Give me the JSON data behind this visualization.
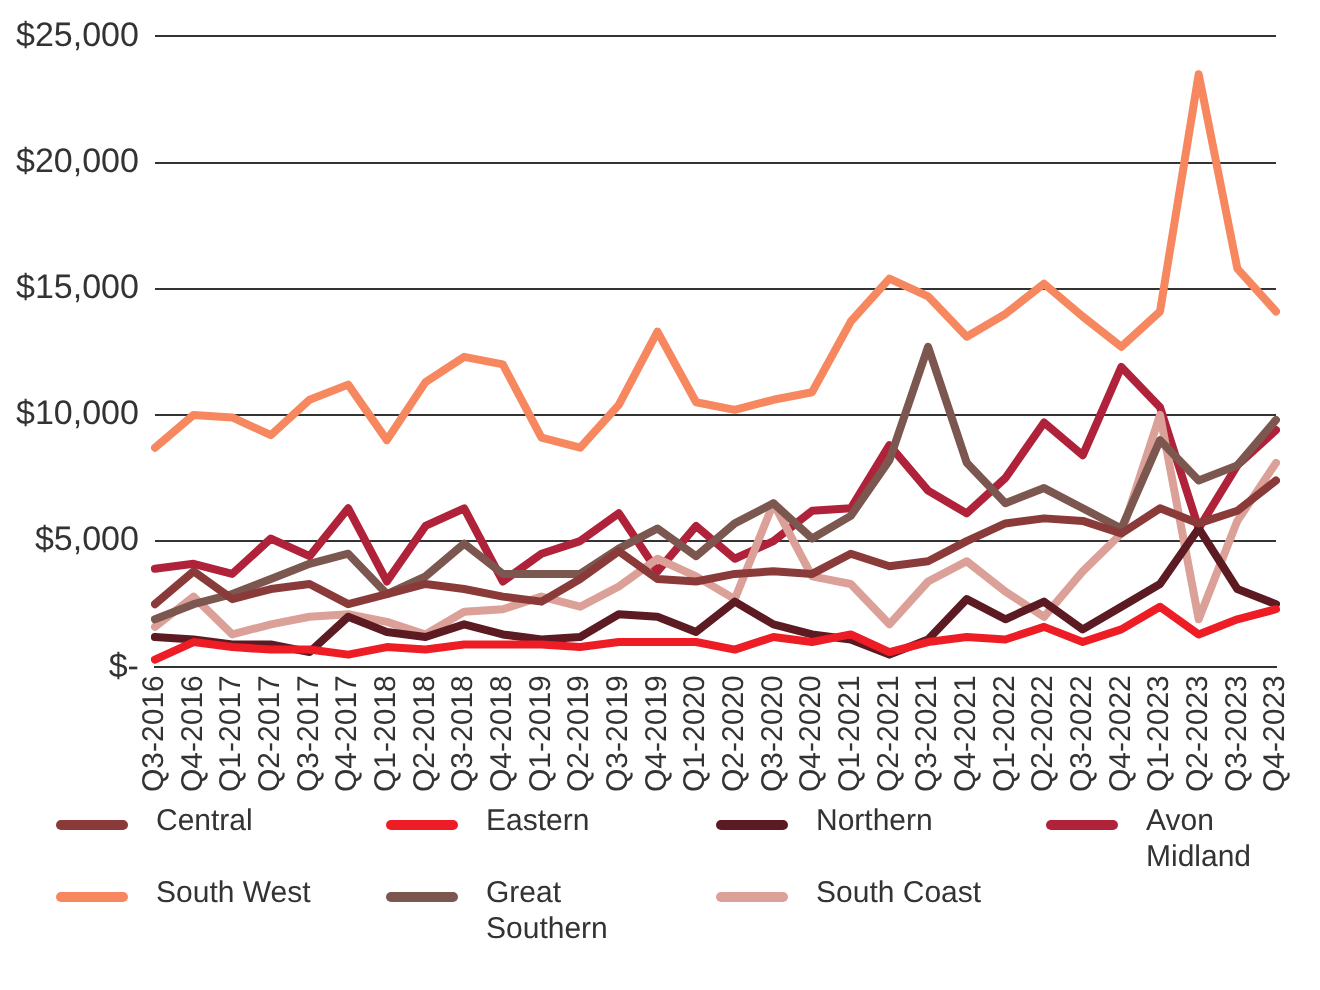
{
  "chart_data": {
    "type": "line",
    "categories": [
      "Q3-2016",
      "Q4-2016",
      "Q1-2017",
      "Q2-2017",
      "Q3-2017",
      "Q4-2017",
      "Q1-2018",
      "Q2-2018",
      "Q3-2018",
      "Q4-2018",
      "Q1-2019",
      "Q2-2019",
      "Q3-2019",
      "Q4-2019",
      "Q1-2020",
      "Q2-2020",
      "Q3-2020",
      "Q4-2020",
      "Q1-2021",
      "Q2-2021",
      "Q3-2021",
      "Q4-2021",
      "Q1-2022",
      "Q2-2022",
      "Q3-2022",
      "Q4-2022",
      "Q1-2023",
      "Q2-2023",
      "Q3-2023",
      "Q4-2023"
    ],
    "series": [
      {
        "name": "Central",
        "color": "#8b3a3a",
        "values": [
          2500,
          3800,
          2700,
          3100,
          3300,
          2500,
          2900,
          3300,
          3100,
          2800,
          2600,
          3500,
          4600,
          3500,
          3400,
          3700,
          3800,
          3700,
          4500,
          4000,
          4200,
          5000,
          5700,
          5900,
          5800,
          5300,
          6300,
          5700,
          6200,
          7400
        ]
      },
      {
        "name": "South West",
        "color": "#f6875f",
        "values": [
          8700,
          10000,
          9900,
          9200,
          10600,
          11200,
          9000,
          11300,
          12300,
          12000,
          9100,
          8700,
          10400,
          13300,
          10500,
          10200,
          10600,
          10900,
          13700,
          15400,
          14700,
          13100,
          14000,
          15200,
          13900,
          12700,
          14100,
          23500,
          15800,
          14100
        ]
      },
      {
        "name": "Eastern",
        "color": "#ee1c25",
        "values": [
          300,
          1000,
          800,
          700,
          700,
          500,
          800,
          700,
          900,
          900,
          900,
          800,
          1000,
          1000,
          1000,
          700,
          1200,
          1000,
          1300,
          600,
          1000,
          1200,
          1100,
          1600,
          1000,
          1500,
          2400,
          1300,
          1900,
          2300
        ]
      },
      {
        "name": "Great Southern",
        "color": "#7b5750",
        "values": [
          1900,
          2500,
          2900,
          3500,
          4100,
          4500,
          2900,
          3600,
          4900,
          3700,
          3700,
          3700,
          4700,
          5500,
          4400,
          5700,
          6500,
          5100,
          6000,
          8200,
          12700,
          8100,
          6500,
          7100,
          6300,
          5500,
          9000,
          7400,
          8000,
          9800
        ]
      },
      {
        "name": "Northern",
        "color": "#5c1a22",
        "values": [
          1200,
          1100,
          900,
          900,
          600,
          2000,
          1400,
          1200,
          1700,
          1300,
          1100,
          1200,
          2100,
          2000,
          1400,
          2600,
          1700,
          1300,
          1100,
          500,
          1100,
          2700,
          1900,
          2600,
          1500,
          2400,
          3300,
          5500,
          3100,
          2500
        ]
      },
      {
        "name": "South Coast",
        "color": "#dba097",
        "values": [
          1600,
          2800,
          1300,
          1700,
          2000,
          2100,
          1800,
          1300,
          2200,
          2300,
          2800,
          2400,
          3200,
          4300,
          3600,
          2700,
          6500,
          3600,
          3300,
          1700,
          3400,
          4200,
          3000,
          2000,
          3800,
          5300,
          10000,
          1900,
          5800,
          8100
        ]
      },
      {
        "name": "Avon Midland",
        "color": "#b0213a",
        "values": [
          3900,
          4100,
          3700,
          5100,
          4400,
          6300,
          3400,
          5600,
          6300,
          3400,
          4500,
          5000,
          6100,
          3800,
          5600,
          4300,
          5000,
          6200,
          6300,
          8800,
          7000,
          6100,
          7500,
          9700,
          8400,
          11900,
          10300,
          5500,
          8000,
          9400
        ]
      }
    ],
    "ylim": [
      0,
      25000
    ],
    "yticks": [
      {
        "value": 0,
        "label": "$-"
      },
      {
        "value": 5000,
        "label": "$5,000"
      },
      {
        "value": 10000,
        "label": "$10,000"
      },
      {
        "value": 15000,
        "label": "$15,000"
      },
      {
        "value": 20000,
        "label": "$20,000"
      },
      {
        "value": 25000,
        "label": "$25,000"
      }
    ],
    "grid": "y",
    "legend": "bottom",
    "marker": "none",
    "line_style": "solid"
  }
}
